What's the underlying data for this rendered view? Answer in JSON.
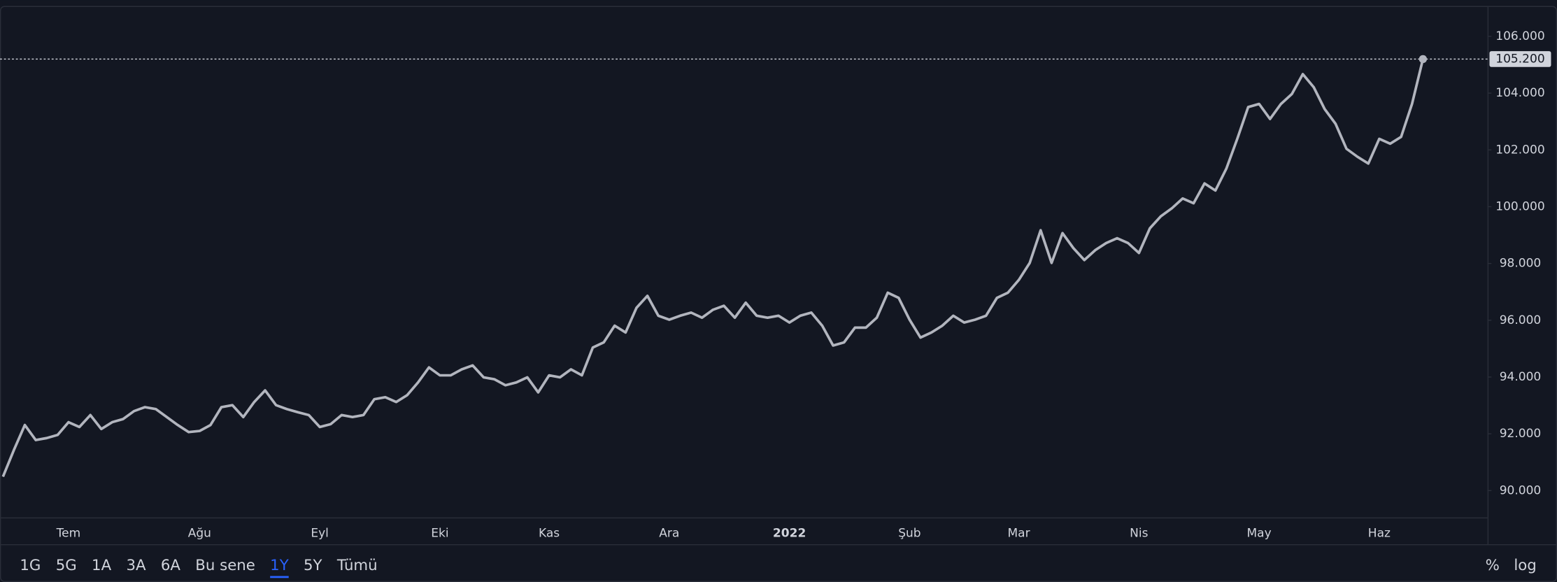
{
  "chart_data": {
    "type": "line",
    "color": "#b2b5be",
    "categories": [
      null,
      null,
      null,
      null,
      null,
      null,
      "Tem",
      null,
      null,
      null,
      null,
      null,
      null,
      null,
      null,
      null,
      null,
      null,
      "Ağu",
      null,
      null,
      null,
      null,
      null,
      null,
      null,
      null,
      null,
      null,
      "Eyl",
      null,
      null,
      null,
      null,
      null,
      null,
      null,
      null,
      null,
      null,
      "Eki",
      null,
      null,
      null,
      null,
      null,
      null,
      null,
      null,
      null,
      "Kas",
      null,
      null,
      null,
      null,
      null,
      null,
      null,
      null,
      null,
      null,
      "Ara",
      null,
      null,
      null,
      null,
      null,
      null,
      null,
      null,
      null,
      null,
      "2022",
      null,
      null,
      null,
      null,
      null,
      null,
      null,
      null,
      null,
      null,
      "Şub",
      null,
      null,
      null,
      null,
      null,
      null,
      null,
      null,
      null,
      "Mar",
      null,
      null,
      null,
      null,
      null,
      null,
      null,
      null,
      null,
      null,
      "Nis",
      null,
      null,
      null,
      null,
      null,
      null,
      null,
      null,
      null,
      null,
      "May",
      null,
      null,
      null,
      null,
      null,
      null,
      null,
      null,
      null,
      null,
      "Haz",
      null,
      null,
      null,
      null
    ],
    "values": [
      90.49,
      91.43,
      92.31,
      91.78,
      91.85,
      91.96,
      92.41,
      92.24,
      92.66,
      92.17,
      92.41,
      92.52,
      92.8,
      92.94,
      92.87,
      92.59,
      92.31,
      92.06,
      92.1,
      92.31,
      92.94,
      93.01,
      92.59,
      93.12,
      93.53,
      93.01,
      92.87,
      92.76,
      92.66,
      92.24,
      92.34,
      92.66,
      92.59,
      92.66,
      93.22,
      93.29,
      93.12,
      93.36,
      93.81,
      94.34,
      94.06,
      94.06,
      94.27,
      94.41,
      93.99,
      93.92,
      93.71,
      93.81,
      93.99,
      93.46,
      94.06,
      93.99,
      94.27,
      94.06,
      95.04,
      95.22,
      95.81,
      95.57,
      96.44,
      96.86,
      96.16,
      96.02,
      96.16,
      96.27,
      96.09,
      96.37,
      96.51,
      96.09,
      96.62,
      96.16,
      96.09,
      96.16,
      95.92,
      96.16,
      96.27,
      95.81,
      95.11,
      95.22,
      95.74,
      95.74,
      96.09,
      96.97,
      96.79,
      96.02,
      95.39,
      95.57,
      95.81,
      96.16,
      95.92,
      96.02,
      96.16,
      96.79,
      96.97,
      97.42,
      98.02,
      99.17,
      98.02,
      99.07,
      98.54,
      98.12,
      98.47,
      98.72,
      98.89,
      98.72,
      98.37,
      99.24,
      99.66,
      99.94,
      100.29,
      100.12,
      100.82,
      100.57,
      101.34,
      102.39,
      103.51,
      103.62,
      103.09,
      103.62,
      103.97,
      104.67,
      104.21,
      103.44,
      102.92,
      102.04,
      101.76,
      101.52,
      102.39,
      102.22,
      102.46,
      103.62,
      105.2
    ],
    "price_line": {
      "value": 105.2,
      "label": "105.200"
    },
    "ylim": [
      89.02,
      107.0
    ],
    "yticks": [
      {
        "value": 90,
        "label": "90.000"
      },
      {
        "value": 92,
        "label": "92.000"
      },
      {
        "value": 94,
        "label": "94.000"
      },
      {
        "value": 96,
        "label": "96.000"
      },
      {
        "value": 98,
        "label": "98.000"
      },
      {
        "value": 100,
        "label": "100.000"
      },
      {
        "value": 102,
        "label": "102.000"
      },
      {
        "value": 104,
        "label": "104.000"
      },
      {
        "value": 106,
        "label": "106.000"
      }
    ],
    "grid": false
  },
  "toolbar": {
    "ranges": [
      "1G",
      "5G",
      "1A",
      "3A",
      "6A",
      "Bu sene",
      "1Y",
      "5Y",
      "Tümü"
    ],
    "active_index": 6,
    "options": [
      "%",
      "log"
    ]
  }
}
